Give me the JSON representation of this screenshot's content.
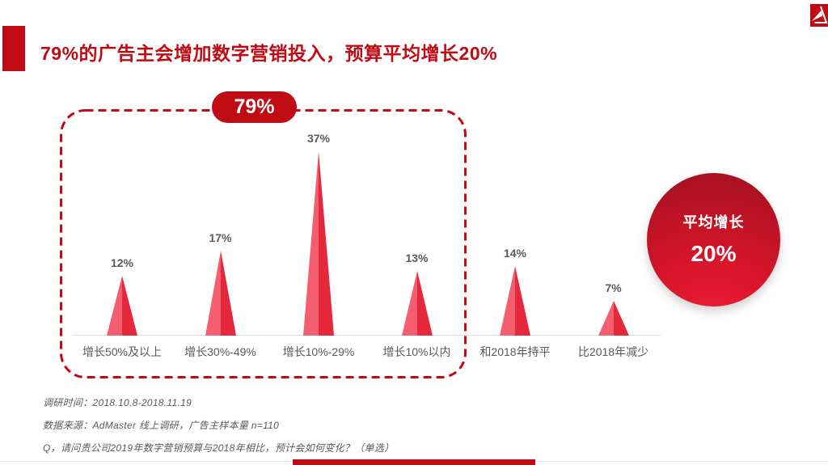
{
  "slide": {
    "title": "79%的广告主会增加数字营销投入，预算平均增长20%"
  },
  "icons": {
    "logo": "admaster-logo"
  },
  "chart_data": {
    "type": "bar",
    "style": "triangle-peak",
    "title": "",
    "xlabel": "",
    "ylabel": "",
    "categories": [
      "增长50%及以上",
      "增长30%-49%",
      "增长10%-29%",
      "增长10%以内",
      "和2018年持平",
      "比2018年减少"
    ],
    "values": [
      12,
      17,
      37,
      13,
      14,
      7
    ],
    "value_suffix": "%",
    "ylim": [
      0,
      40
    ],
    "grid": false,
    "legend": "none",
    "highlight_group": {
      "label": "79%",
      "covers_categories": [
        "增长50%及以上",
        "增长30%-49%",
        "增长10%-29%",
        "增长10%以内"
      ]
    },
    "callout": {
      "line1": "平均增长",
      "line2": "20%"
    },
    "colors": {
      "accent": "#C00A14",
      "peak_left": "#F45E6E",
      "peak_right": "#E6283D",
      "label_text": "#595959",
      "baseline": "#DCDCDC"
    }
  },
  "footnotes": [
    "调研时间：2018.10.8-2018.11.19",
    "数据来源：AdMaster 线上调研，广告主样本量 n=110",
    "Q，请问贵公司2019年数字营销预算与2018年相比，预计会如何变化？（单选）"
  ]
}
